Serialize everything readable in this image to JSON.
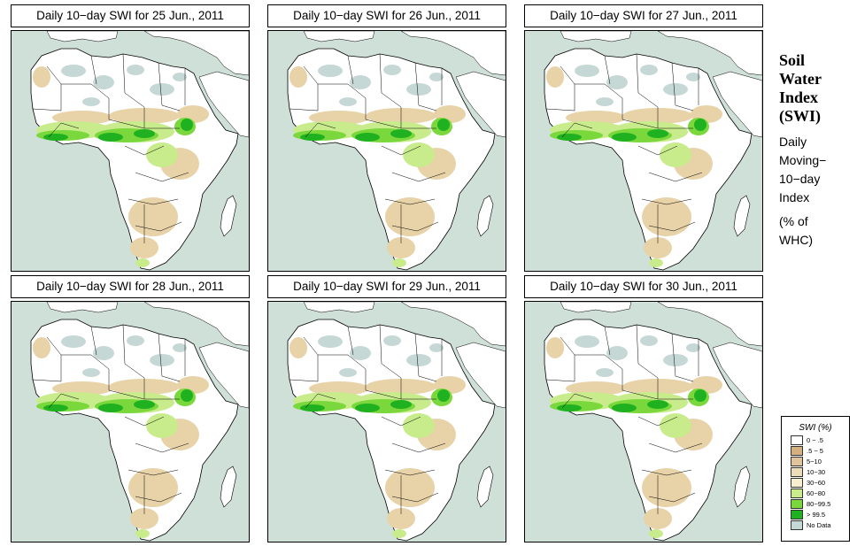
{
  "panels": [
    {
      "title": "Daily 10−day SWI for  25 Jun., 2011"
    },
    {
      "title": "Daily 10−day SWI for  26 Jun., 2011"
    },
    {
      "title": "Daily 10−day SWI for  27 Jun., 2011"
    },
    {
      "title": "Daily 10−day SWI for  28 Jun., 2011"
    },
    {
      "title": "Daily 10−day SWI for  29 Jun., 2011"
    },
    {
      "title": "Daily 10−day SWI for  30 Jun., 2011"
    }
  ],
  "sidebar": {
    "title_lines": [
      "Soil",
      "Water",
      "Index",
      "(SWI)"
    ],
    "desc_lines": [
      "Daily",
      "Moving−",
      "10−day",
      "Index"
    ],
    "unit_lines": [
      "(% of",
      " WHC)"
    ]
  },
  "legend": {
    "title": "SWI (%)",
    "items": [
      {
        "label": "0 − .5",
        "color": "#ffffff"
      },
      {
        "label": ".5 − 5",
        "color": "#d4b080"
      },
      {
        "label": "5−10",
        "color": "#e2c49c"
      },
      {
        "label": "10−30",
        "color": "#ecdcba"
      },
      {
        "label": "30−60",
        "color": "#f6f0cf"
      },
      {
        "label": "60−80",
        "color": "#c8ec8c"
      },
      {
        "label": "80−99.5",
        "color": "#7ad83c"
      },
      {
        "label": "> 99.5",
        "color": "#1fb11f"
      },
      {
        "label": "No Data",
        "color": "#c6d8d6"
      }
    ]
  },
  "colors": {
    "ocean": "#cfe0d8",
    "land": "#ffffff",
    "desert_nodata": "#c6d8d6",
    "green_dark": "#1fb11f",
    "green_mid": "#7ad83c",
    "green_light": "#c8ec8c",
    "tan_dark": "#d4b080",
    "tan_light": "#e8d2a8"
  }
}
